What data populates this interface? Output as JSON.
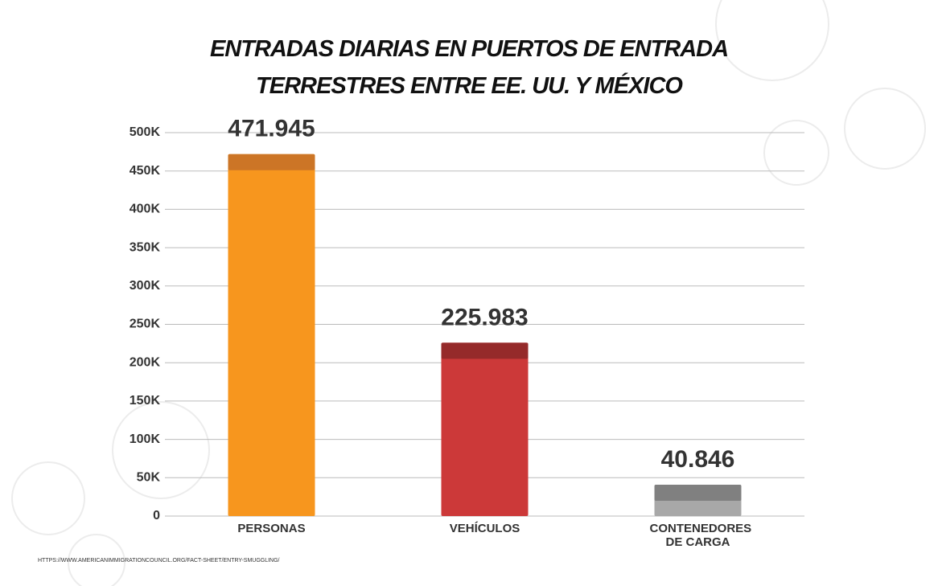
{
  "chart_data": {
    "type": "bar",
    "title": "ENTRADAS DIARIAS EN PUERTOS DE ENTRADA TERRESTRES ENTRE EE. UU. Y MÉXICO",
    "categories": [
      "PERSONAS",
      "VEHÍCULOS",
      "CONTENEDORES DE CARGA"
    ],
    "values": [
      471945,
      225983,
      40846
    ],
    "value_labels": [
      "471.945",
      "225.983",
      "40.846"
    ],
    "colors": [
      "#f7961e",
      "#cc3939",
      "#a8a8a8"
    ],
    "cap_colors": [
      "#cc7526",
      "#952a2a",
      "#808080"
    ],
    "ylim": [
      0,
      500000
    ],
    "yticks": [
      {
        "value": 0,
        "label": "0"
      },
      {
        "value": 50000,
        "label": "50K"
      },
      {
        "value": 100000,
        "label": "100K"
      },
      {
        "value": 150000,
        "label": "150K"
      },
      {
        "value": 200000,
        "label": "200K"
      },
      {
        "value": 250000,
        "label": "250K"
      },
      {
        "value": 300000,
        "label": "300K"
      },
      {
        "value": 350000,
        "label": "350K"
      },
      {
        "value": 400000,
        "label": "400K"
      },
      {
        "value": 450000,
        "label": "450K"
      },
      {
        "value": 500000,
        "label": "500K"
      }
    ],
    "grid": true,
    "source": "HTTPS://WWW.AMERICANIMMIGRATIONCOUNCIL.ORG/FACT-SHEET/ENTRY-SMUGGLING/"
  }
}
